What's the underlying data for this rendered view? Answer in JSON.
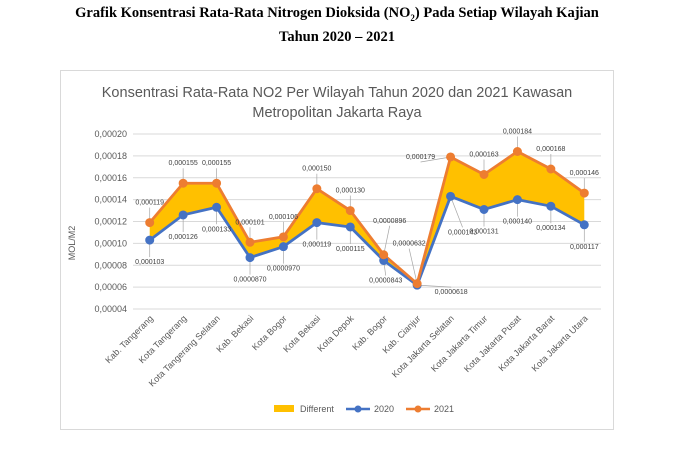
{
  "document": {
    "title_line1_pre": "Grafik Konsentrasi Rata-Rata Nitrogen Dioksida (NO",
    "title_sub": "2",
    "title_line1_post": ") Pada Setiap Wilayah Kajian",
    "title_line2": "Tahun 2020 – 2021"
  },
  "chart_data": {
    "type": "line",
    "title_line1": "Konsentrasi Rata-Rata NO2 Per Wilayah Tahun 2020 dan 2021 Kawasan",
    "title_line2": "Metropolitan Jakarta Raya",
    "ylabel": "MOL/M2",
    "xlabel": "",
    "ylim": [
      4e-05,
      0.0002
    ],
    "ytick_labels": [
      "0,00004",
      "0,00006",
      "0,00008",
      "0,00010",
      "0,00012",
      "0,00014",
      "0,00016",
      "0,00018",
      "0,00020"
    ],
    "grid": true,
    "legend_position": "bottom",
    "categories": [
      "Kab. Tangerang",
      "Kota Tangerang",
      "Kota Tangerang Selatan",
      "Kab. Bekasi",
      "Kota Bogor",
      "Kota Bekasi",
      "Kota Depok",
      "Kab. Bogor",
      "Kab. Cianjur",
      "Kota Jakarta Selatan",
      "Kota Jakarta Timur",
      "Kota Jakarta Pusat",
      "Kota Jakarta Barat",
      "Kota Jakarta Utara"
    ],
    "series": [
      {
        "name": "2020",
        "color": "#4472c4",
        "values": [
          0.000103,
          0.000126,
          0.000133,
          8.7e-05,
          9.7e-05,
          0.000119,
          0.000115,
          8.43e-05,
          6.18e-05,
          0.000143,
          0.000131,
          0.00014,
          0.000134,
          0.000117
        ],
        "labels": [
          "0,000103",
          "0,000126",
          "0,000133",
          "0,0000870",
          "0,0000970",
          "0,000119",
          "0,000115",
          "0,0000843",
          "0,0000618",
          "0,000143",
          "0,000131",
          "0,000140",
          "0,000134",
          "0,000117"
        ]
      },
      {
        "name": "2021",
        "color": "#ed7d31",
        "values": [
          0.000119,
          0.000155,
          0.000155,
          0.000101,
          0.000106,
          0.00015,
          0.00013,
          8.96e-05,
          6.32e-05,
          0.000179,
          0.000163,
          0.000184,
          0.000168,
          0.000146
        ],
        "labels": [
          "0,000119",
          "0,000155",
          "0,000155",
          "0,000101",
          "0,000106",
          "0,000150",
          "0,000130",
          "0,0000896",
          "0,0000632",
          "0,000179",
          "0,000163",
          "0,000184",
          "0,000168",
          "0,000146"
        ]
      }
    ],
    "difference_area": {
      "name": "Different",
      "color": "#ffc000"
    }
  }
}
